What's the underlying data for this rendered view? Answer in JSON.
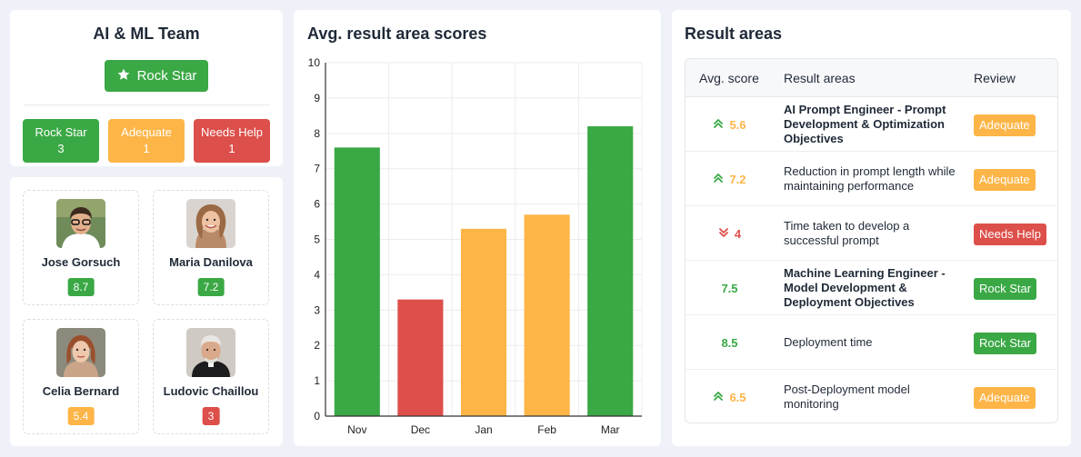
{
  "colors": {
    "green": "#3aa845",
    "orange": "#fdb547",
    "red": "#dd4f4a"
  },
  "team": {
    "title": "AI & ML Team",
    "badge_label": "Rock Star",
    "badge_icon": "star-icon",
    "counts": [
      {
        "label": "Rock Star",
        "value": "3",
        "color": "#3aa845"
      },
      {
        "label": "Adequate",
        "value": "1",
        "color": "#fdb547"
      },
      {
        "label": "Needs Help",
        "value": "1",
        "color": "#dd4f4a"
      }
    ]
  },
  "people": [
    {
      "name": "Jose Gorsuch",
      "score": "8.7",
      "color": "#3aa845"
    },
    {
      "name": "Maria Danilova",
      "score": "7.2",
      "color": "#3aa845"
    },
    {
      "name": "Celia Bernard",
      "score": "5.4",
      "color": "#fdb547"
    },
    {
      "name": "Ludovic Chaillou",
      "score": "3",
      "color": "#dd4f4a"
    }
  ],
  "chart_data": {
    "type": "bar",
    "title": "Avg. result area scores",
    "categories": [
      "Nov",
      "Dec",
      "Jan",
      "Feb",
      "Mar"
    ],
    "values": [
      7.6,
      3.3,
      5.3,
      5.7,
      8.2
    ],
    "colors": [
      "#3aa845",
      "#dd4f4a",
      "#fdb547",
      "#fdb547",
      "#3aa845"
    ],
    "ylim": [
      0,
      10
    ],
    "yticks": [
      "0",
      "1",
      "2",
      "3",
      "4",
      "5",
      "6",
      "7",
      "8",
      "9",
      "10"
    ],
    "grid": true,
    "legend": "none"
  },
  "results": {
    "title": "Result areas",
    "headers": {
      "score": "Avg. score",
      "area": "Result areas",
      "review": "Review"
    },
    "rows": [
      {
        "score": "5.6",
        "trend": "up",
        "score_color": "#fdb547",
        "area": "AI Prompt Engineer - Prompt Development & Optimization Objectives",
        "bold": true,
        "review": "Adequate",
        "review_color": "#fdb547"
      },
      {
        "score": "7.2",
        "trend": "up",
        "score_color": "#fdb547",
        "area": "Reduction in prompt length while maintaining performance",
        "bold": false,
        "review": "Adequate",
        "review_color": "#fdb547"
      },
      {
        "score": "4",
        "trend": "down",
        "score_color": "#dd4f4a",
        "area": "Time taken to develop a successful prompt",
        "bold": false,
        "review": "Needs Help",
        "review_color": "#dd4f4a"
      },
      {
        "score": "7.5",
        "trend": "none",
        "score_color": "#3aa845",
        "area": "Machine Learning Engineer - Model Development & Deployment Objectives",
        "bold": true,
        "review": "Rock Star",
        "review_color": "#3aa845"
      },
      {
        "score": "8.5",
        "trend": "none",
        "score_color": "#3aa845",
        "area": "Deployment time",
        "bold": false,
        "review": "Rock Star",
        "review_color": "#3aa845"
      },
      {
        "score": "6.5",
        "trend": "up",
        "score_color": "#fdb547",
        "area": "Post-Deployment model monitoring",
        "bold": false,
        "review": "Adequate",
        "review_color": "#fdb547"
      }
    ]
  }
}
